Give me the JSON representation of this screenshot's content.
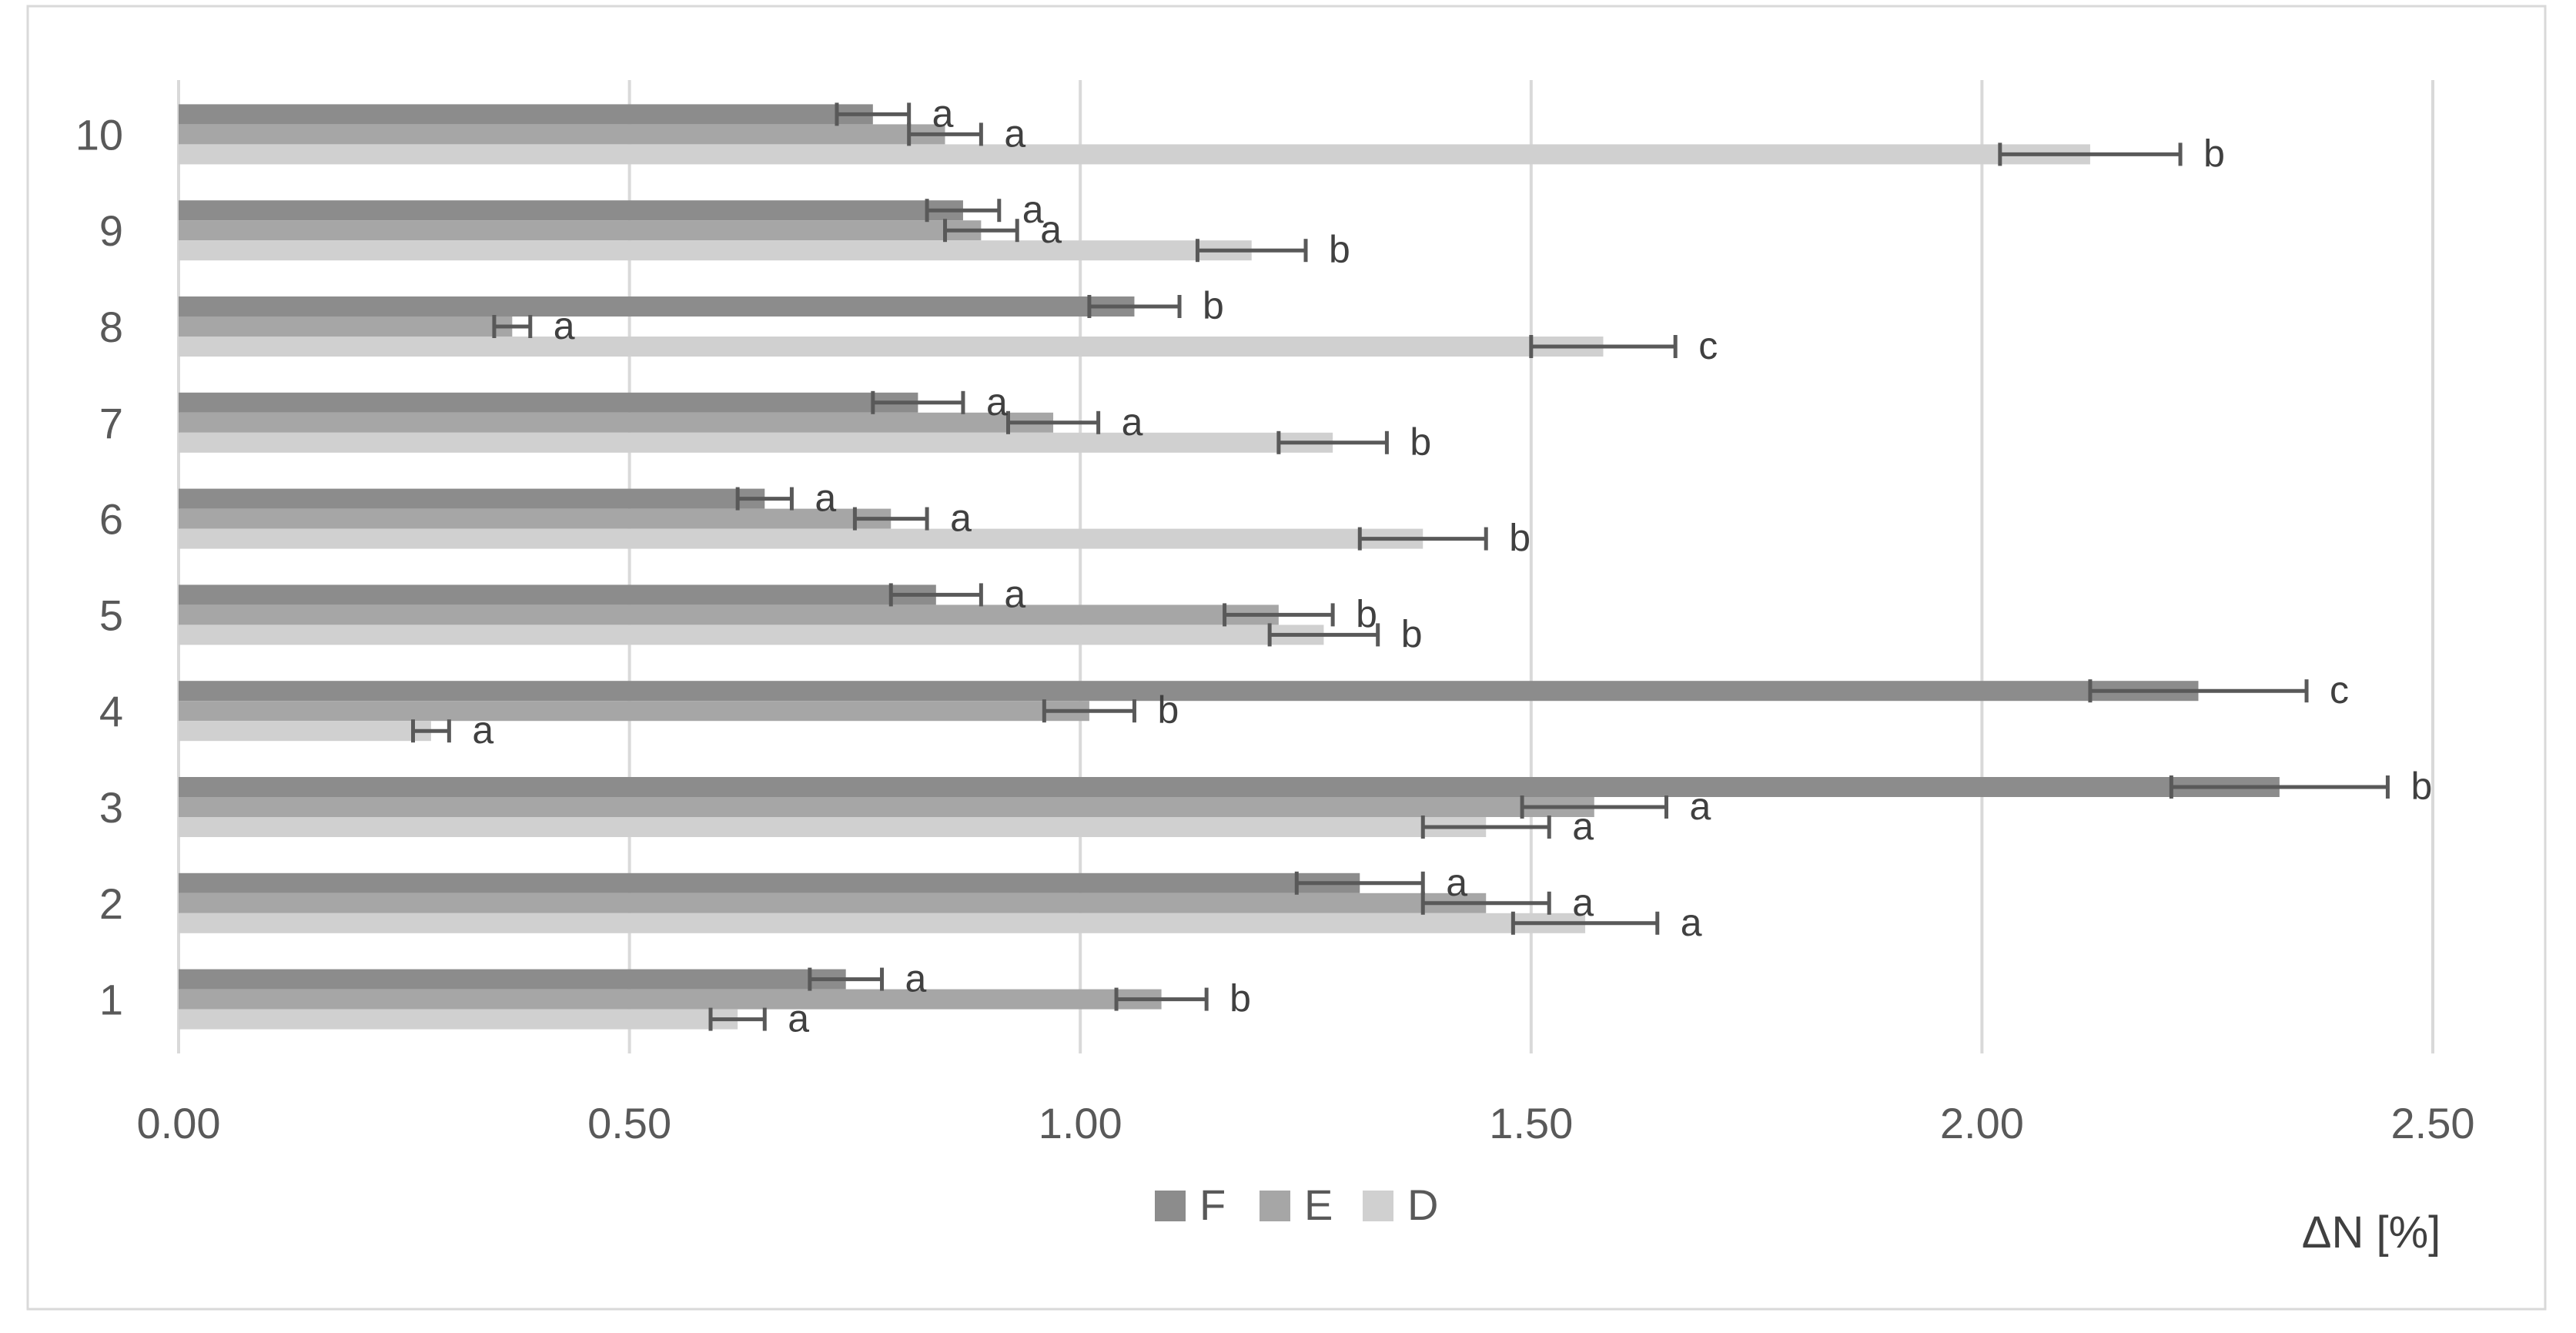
{
  "chart_data": {
    "type": "bar",
    "orientation": "horizontal",
    "title": "",
    "xlabel": "ΔN [%]",
    "ylabel": "",
    "xlim": [
      0,
      2.5
    ],
    "x_ticks": [
      "0.00",
      "0.50",
      "1.00",
      "1.50",
      "2.00",
      "2.50"
    ],
    "x_tick_values": [
      0,
      0.5,
      1.0,
      1.5,
      2.0,
      2.5
    ],
    "grid": "vertical",
    "legend_position": "bottom",
    "categories": [
      "1",
      "2",
      "3",
      "4",
      "5",
      "6",
      "7",
      "8",
      "9",
      "10"
    ],
    "series": [
      {
        "name": "F",
        "color": "#8c8c8c",
        "values": [
          0.74,
          1.31,
          2.33,
          2.24,
          0.84,
          0.65,
          0.82,
          1.06,
          0.87,
          0.77
        ],
        "errors": [
          0.04,
          0.07,
          0.12,
          0.12,
          0.05,
          0.03,
          0.05,
          0.05,
          0.04,
          0.04
        ],
        "labels": [
          "a",
          "a",
          "b",
          "c",
          "a",
          "a",
          "a",
          "b",
          "a",
          "a"
        ]
      },
      {
        "name": "E",
        "color": "#a6a6a6",
        "values": [
          1.09,
          1.45,
          1.57,
          1.01,
          1.22,
          0.79,
          0.97,
          0.37,
          0.89,
          0.85
        ],
        "errors": [
          0.05,
          0.07,
          0.08,
          0.05,
          0.06,
          0.04,
          0.05,
          0.02,
          0.04,
          0.04
        ],
        "labels": [
          "b",
          "a",
          "a",
          "b",
          "b",
          "a",
          "a",
          "a",
          "a",
          "a"
        ]
      },
      {
        "name": "D",
        "color": "#d0d0d0",
        "values": [
          0.62,
          1.56,
          1.45,
          0.28,
          1.27,
          1.38,
          1.28,
          1.58,
          1.19,
          2.12
        ],
        "errors": [
          0.03,
          0.08,
          0.07,
          0.02,
          0.06,
          0.07,
          0.06,
          0.08,
          0.06,
          0.1
        ],
        "labels": [
          "a",
          "a",
          "a",
          "a",
          "b",
          "b",
          "b",
          "c",
          "b",
          "b"
        ]
      }
    ]
  }
}
